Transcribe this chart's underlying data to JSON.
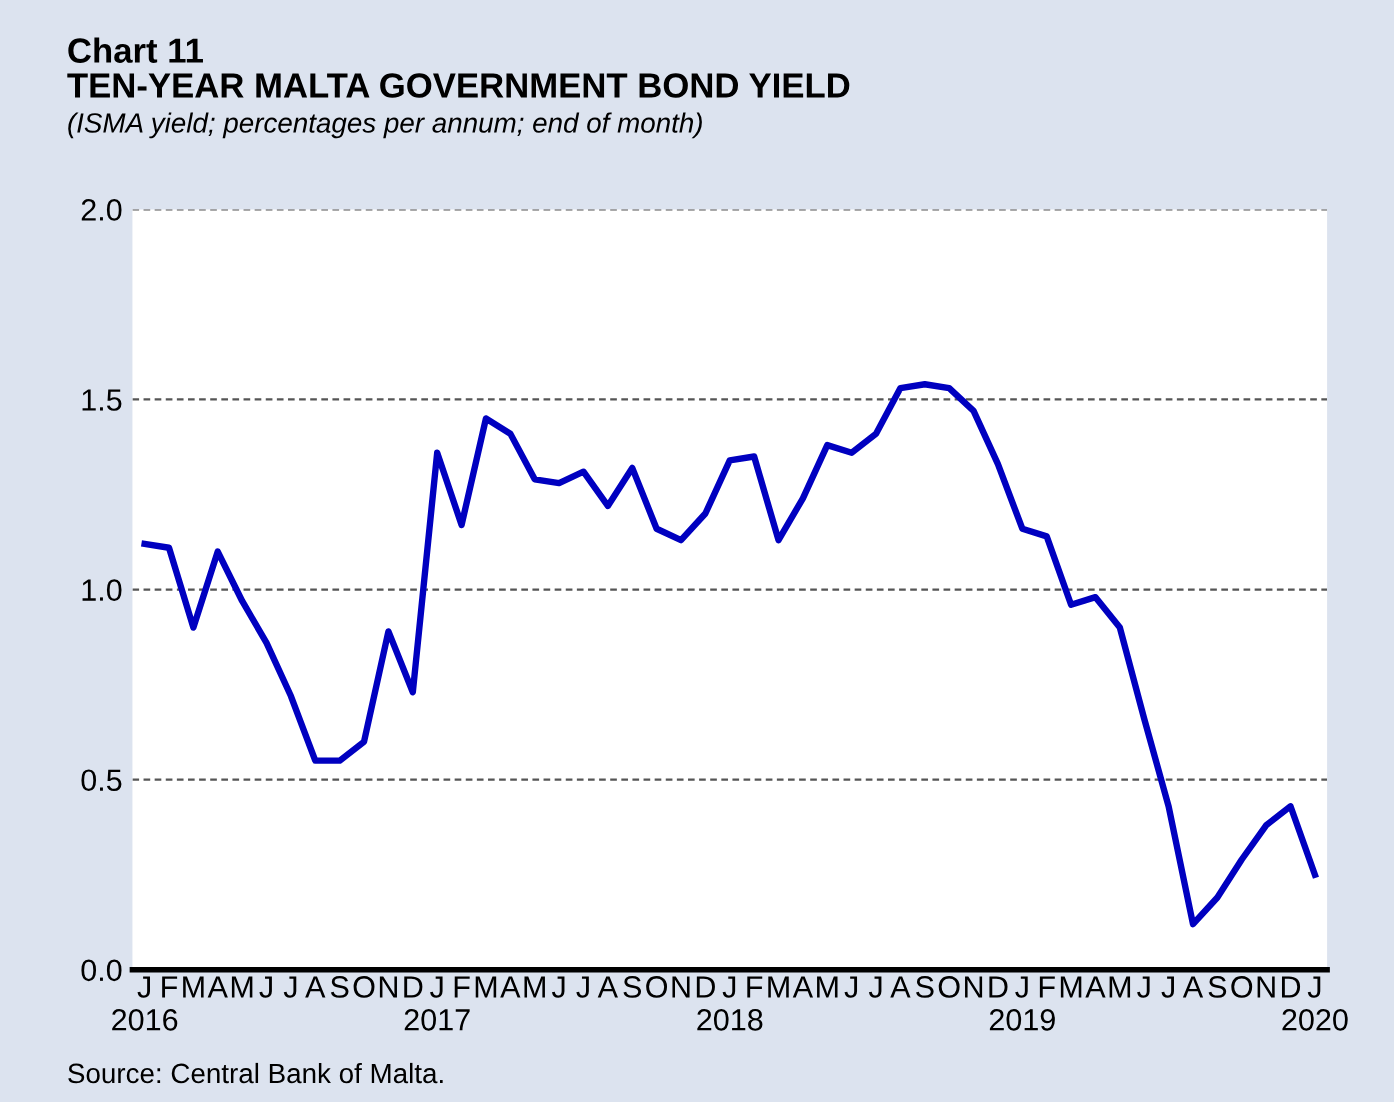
{
  "chart_data": {
    "type": "line",
    "title": "Chart 11\nTEN-YEAR MALTA GOVERNMENT BOND YIELD",
    "subtitle": "(ISMA yield; percentages per annum; end of month)",
    "categories": [
      "J\n2016",
      "F",
      "M",
      "A",
      "M",
      "J",
      "J",
      "A",
      "S",
      "O",
      "N",
      "D",
      "J\n2017",
      "F",
      "M",
      "A",
      "M",
      "J",
      "J",
      "A",
      "S",
      "O",
      "N",
      "D",
      "J\n2018",
      "F",
      "M",
      "A",
      "M",
      "J",
      "J",
      "A",
      "S",
      "O",
      "N",
      "D",
      "J\n2019",
      "F",
      "M",
      "A",
      "M",
      "J",
      "J",
      "A",
      "S",
      "O",
      "N",
      "D",
      "J\n2020"
    ],
    "series": [
      {
        "color": "#0000c0",
        "values": [
          1.12,
          1.11,
          0.9,
          1.1,
          0.97,
          0.86,
          0.72,
          0.55,
          0.55,
          0.6,
          0.89,
          0.73,
          1.36,
          1.17,
          1.45,
          1.41,
          1.29,
          1.28,
          1.31,
          1.22,
          1.32,
          1.16,
          1.13,
          1.2,
          1.34,
          1.35,
          1.13,
          1.24,
          1.38,
          1.36,
          1.41,
          1.53,
          1.54,
          1.53,
          1.47,
          1.33,
          1.16,
          1.14,
          0.96,
          0.98,
          0.9,
          0.66,
          0.43,
          0.12,
          0.19,
          0.29,
          0.38,
          0.43,
          0.25
        ]
      }
    ],
    "ylim": [
      0,
      2
    ],
    "yticks": [
      {
        "value": 0,
        "label": "0.0"
      },
      {
        "value": 0.5,
        "label": "0.5"
      },
      {
        "value": 1,
        "label": "1.0"
      },
      {
        "value": 1.5,
        "label": "1.5"
      },
      {
        "value": 2,
        "label": "2.0"
      }
    ],
    "grid": "y",
    "line_style": "solid",
    "marker": "none",
    "legend": false,
    "annotations": [
      "Source: Central Bank of Malta."
    ]
  }
}
